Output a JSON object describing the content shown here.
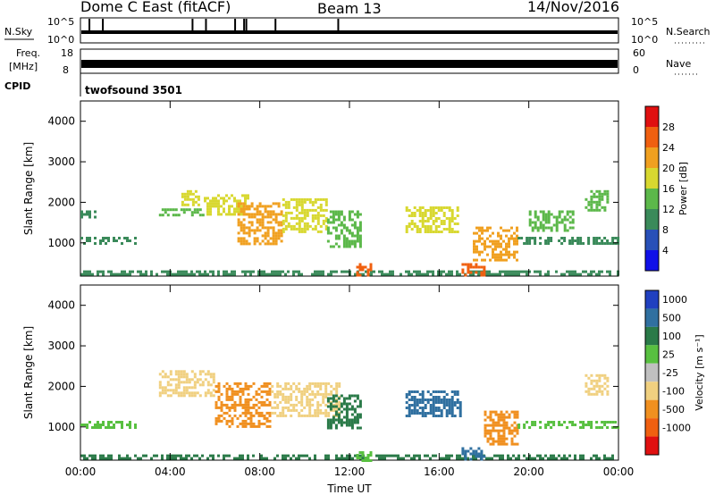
{
  "header": {
    "station": "Dome C East (fitACF)",
    "beam": "Beam 13",
    "date": "14/Nov/2016"
  },
  "strips": {
    "nsky_label": "N.Sky",
    "nsky_ticks": [
      "10^5",
      "10^0"
    ],
    "nsearch_label": "N.Search",
    "nsearch_ticks": [
      "10^5",
      "10^0"
    ],
    "freq_label_line1": "Freq.",
    "freq_label_line2": "[MHz]",
    "freq_ticks": [
      "18",
      "8"
    ],
    "nave_label": "Nave",
    "nave_ticks": [
      "60",
      "0"
    ],
    "cpid_label": "CPID",
    "cpid_value": "twofsound 3501"
  },
  "chart_data": [
    {
      "type": "heatmap",
      "name": "power",
      "ylabel": "Slant Range [km]",
      "xlabel": "",
      "x_ticks": [
        "00:00",
        "04:00",
        "08:00",
        "12:00",
        "16:00",
        "20:00",
        "00:00"
      ],
      "x_range_hours": [
        0,
        24
      ],
      "y_ticks": [
        1000,
        2000,
        3000,
        4000
      ],
      "ylim": [
        180,
        4500
      ],
      "colorbar": {
        "label": "Power [dB]",
        "ticks": [
          "4",
          "8",
          "12",
          "16",
          "20",
          "24",
          "28"
        ],
        "range": [
          0,
          32
        ],
        "colors": [
          "#1010e8",
          "#2850b8",
          "#3a8a5a",
          "#5cb84a",
          "#d8d830",
          "#f0a020",
          "#f06010",
          "#e01010"
        ]
      },
      "echo_regions": [
        {
          "t": [
            0.0,
            24.0
          ],
          "r": [
            200,
            320
          ],
          "value": 8
        },
        {
          "t": [
            0.0,
            2.5
          ],
          "r": [
            1000,
            1150
          ],
          "value": 10
        },
        {
          "t": [
            0.0,
            0.6
          ],
          "r": [
            1650,
            1800
          ],
          "value": 8
        },
        {
          "t": [
            3.5,
            5.5
          ],
          "r": [
            1700,
            1850
          ],
          "value": 14
        },
        {
          "t": [
            4.5,
            5.3
          ],
          "r": [
            1950,
            2300
          ],
          "value": 16
        },
        {
          "t": [
            5.5,
            7.5
          ],
          "r": [
            1700,
            2200
          ],
          "value": 16
        },
        {
          "t": [
            7.0,
            9.0
          ],
          "r": [
            1000,
            2000
          ],
          "value": 20
        },
        {
          "t": [
            9.0,
            11.0
          ],
          "r": [
            1300,
            2100
          ],
          "value": 16
        },
        {
          "t": [
            11.0,
            12.5
          ],
          "r": [
            900,
            1800
          ],
          "value": 14
        },
        {
          "t": [
            12.3,
            13.0
          ],
          "r": [
            200,
            500
          ],
          "value": 24
        },
        {
          "t": [
            14.5,
            16.8
          ],
          "r": [
            1300,
            1900
          ],
          "value": 16
        },
        {
          "t": [
            17.0,
            18.0
          ],
          "r": [
            200,
            500
          ],
          "value": 26
        },
        {
          "t": [
            17.5,
            19.5
          ],
          "r": [
            600,
            1400
          ],
          "value": 22
        },
        {
          "t": [
            19.5,
            24.0
          ],
          "r": [
            1000,
            1150
          ],
          "value": 10
        },
        {
          "t": [
            20.0,
            22.0
          ],
          "r": [
            1300,
            1800
          ],
          "value": 12
        },
        {
          "t": [
            22.5,
            23.5
          ],
          "r": [
            1800,
            2300
          ],
          "value": 14
        }
      ]
    },
    {
      "type": "heatmap",
      "name": "velocity",
      "ylabel": "Slant Range [km]",
      "xlabel": "Time UT",
      "x_ticks": [
        "00:00",
        "04:00",
        "08:00",
        "12:00",
        "16:00",
        "20:00",
        "00:00"
      ],
      "x_range_hours": [
        0,
        24
      ],
      "y_ticks": [
        1000,
        2000,
        3000,
        4000
      ],
      "ylim": [
        180,
        4500
      ],
      "colorbar": {
        "label": "Velocity [m s⁻¹]",
        "ticks": [
          "1000",
          "500",
          "100",
          "25",
          "-25",
          "-100",
          "-500",
          "-1000"
        ],
        "colors": [
          "#2040c0",
          "#3070a0",
          "#2a7a48",
          "#58c040",
          "#c0c0c0",
          "#f0d080",
          "#f09020",
          "#f06010",
          "#e01010"
        ]
      },
      "echo_regions": [
        {
          "t": [
            0.0,
            24.0
          ],
          "r": [
            200,
            320
          ],
          "value": "100"
        },
        {
          "t": [
            0.0,
            2.5
          ],
          "r": [
            1000,
            1150
          ],
          "value": "25"
        },
        {
          "t": [
            3.5,
            6.0
          ],
          "r": [
            1800,
            2400
          ],
          "value": "-100"
        },
        {
          "t": [
            6.0,
            8.5
          ],
          "r": [
            1000,
            2100
          ],
          "value": "-500"
        },
        {
          "t": [
            8.5,
            11.5
          ],
          "r": [
            1300,
            2100
          ],
          "value": "-100"
        },
        {
          "t": [
            11.0,
            12.5
          ],
          "r": [
            1000,
            1800
          ],
          "value": "100"
        },
        {
          "t": [
            12.3,
            13.0
          ],
          "r": [
            200,
            400
          ],
          "value": "25"
        },
        {
          "t": [
            14.5,
            17.0
          ],
          "r": [
            1300,
            1900
          ],
          "value": "500"
        },
        {
          "t": [
            17.0,
            18.0
          ],
          "r": [
            200,
            500
          ],
          "value": "500"
        },
        {
          "t": [
            18.0,
            19.5
          ],
          "r": [
            600,
            1400
          ],
          "value": "-500"
        },
        {
          "t": [
            19.5,
            24.0
          ],
          "r": [
            1000,
            1150
          ],
          "value": "25"
        },
        {
          "t": [
            22.5,
            23.5
          ],
          "r": [
            1800,
            2300
          ],
          "value": "-100"
        }
      ]
    }
  ]
}
